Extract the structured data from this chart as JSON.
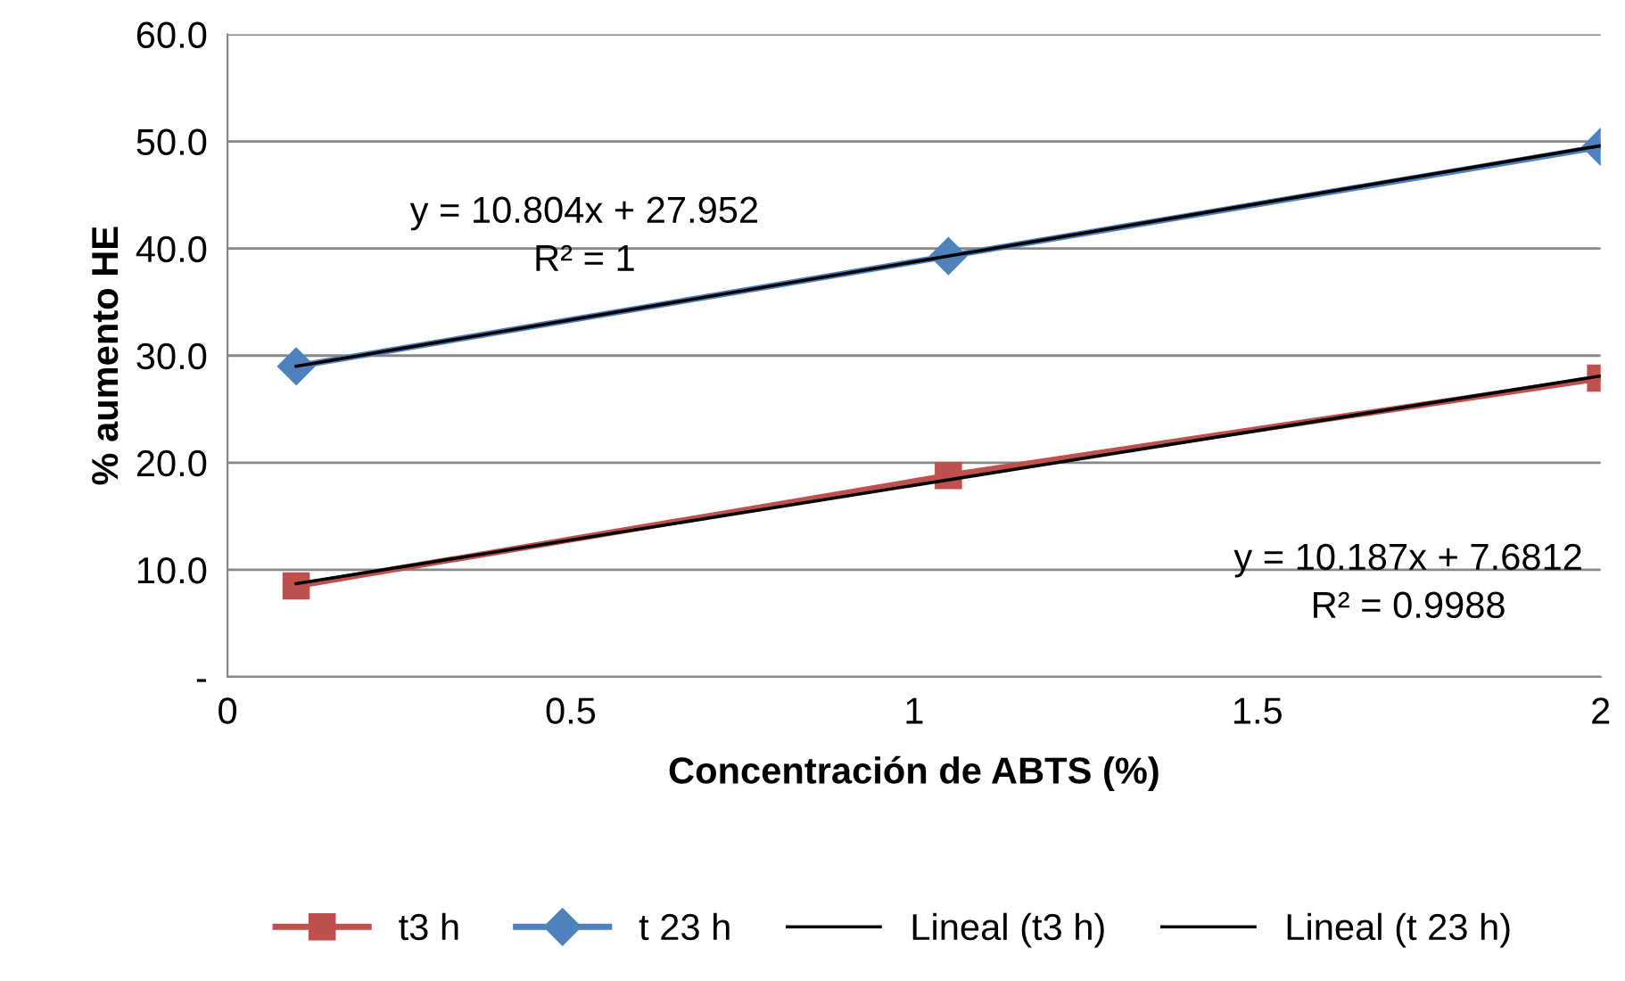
{
  "chart_data": {
    "type": "line",
    "xlabel": "Concentración de ABTS (%)",
    "ylabel": "% aumento HE",
    "xlim": [
      0,
      2
    ],
    "xticks": [
      0,
      0.5,
      1,
      1.5,
      2
    ],
    "ylim": [
      0,
      60
    ],
    "yticks": [
      {
        "value": 0,
        "label": "-"
      },
      {
        "value": 10,
        "label": "10.0"
      },
      {
        "value": 20,
        "label": "20.0"
      },
      {
        "value": 30,
        "label": "30.0"
      },
      {
        "value": 40,
        "label": "40.0"
      },
      {
        "value": 50,
        "label": "50.0"
      },
      {
        "value": 60,
        "label": "60.0"
      }
    ],
    "grid": "y",
    "legend": "bottom",
    "series": [
      {
        "name": "t3 h",
        "color": "#c0504d",
        "marker": "square",
        "x": [
          0.1,
          1.05,
          2
        ],
        "values": [
          8.5,
          18.8,
          27.9
        ]
      },
      {
        "name": "t 23 h",
        "color": "#4f81bd",
        "marker": "diamond",
        "x": [
          0.1,
          1.05,
          2
        ],
        "values": [
          29.0,
          39.3,
          49.5
        ]
      },
      {
        "name": "Lineal (t3 h)",
        "color": "#000000",
        "marker": "none",
        "x": [
          0.1,
          2
        ],
        "values": [
          8.7,
          28.1
        ]
      },
      {
        "name": "Lineal (t 23 h)",
        "color": "#000000",
        "marker": "none",
        "x": [
          0.1,
          2
        ],
        "values": [
          29.0,
          49.6
        ]
      }
    ],
    "annotations": [
      "y = 10.804x + 27.952\nR² = 1",
      "y = 10.187x + 7.6812\nR² = 0.9988"
    ]
  }
}
